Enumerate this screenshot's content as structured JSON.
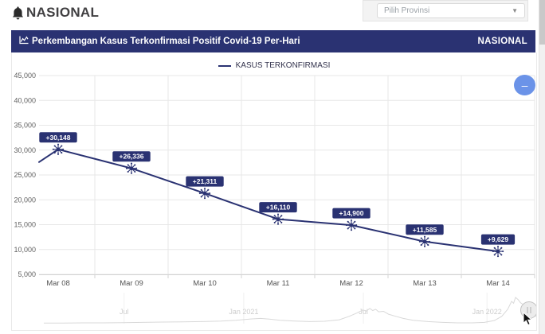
{
  "header": {
    "brand": "NASIONAL",
    "province_select": {
      "placeholder": "Pilih Provinsi"
    }
  },
  "banner": {
    "title": "Perkembangan Kasus Terkonfirmasi Positif Covid-19 Per-Hari",
    "region": "NASIONAL"
  },
  "controls": {
    "zoom_out": "–"
  },
  "chart_data": {
    "type": "line",
    "title": "Perkembangan Kasus Terkonfirmasi Positif Covid-19 Per-Hari",
    "legend": [
      {
        "label": "KASUS TERKONFIRMASI",
        "color": "#2a3272"
      }
    ],
    "legend_position": "top",
    "grid": true,
    "categories": [
      "Mar 08",
      "Mar 09",
      "Mar 10",
      "Mar 11",
      "Mar 12",
      "Mar 13",
      "Mar 14"
    ],
    "series": [
      {
        "name": "KASUS TERKONFIRMASI",
        "values": [
          30148,
          26336,
          21311,
          16110,
          14900,
          11585,
          9629
        ]
      }
    ],
    "data_labels": [
      "+30,148",
      "+26,336",
      "+21,311",
      "+16,110",
      "+14,900",
      "+11,585",
      "+9,629"
    ],
    "y_tick_labels": [
      "45,000",
      "40,000",
      "35,000",
      "30,000",
      "25,000",
      "20,000",
      "15,000",
      "10,000",
      "5,000"
    ],
    "y_ticks": [
      45000,
      40000,
      35000,
      30000,
      25000,
      20000,
      15000,
      10000,
      5000
    ],
    "ylim": [
      5000,
      45000
    ],
    "left_edge_value": 27600,
    "line_color": "#2a3272",
    "marker": "virus-icon",
    "navigator": {
      "labels": [
        {
          "text": "Jul",
          "f": 0.163
        },
        {
          "text": "Jan 2021",
          "f": 0.406
        },
        {
          "text": "Jul",
          "f": 0.649
        },
        {
          "text": "Jan 2022",
          "f": 0.9
        }
      ],
      "profile": [
        [
          0.0,
          0.02
        ],
        [
          0.04,
          0.02
        ],
        [
          0.08,
          0.03
        ],
        [
          0.12,
          0.03
        ],
        [
          0.16,
          0.04
        ],
        [
          0.2,
          0.05
        ],
        [
          0.24,
          0.06
        ],
        [
          0.28,
          0.07
        ],
        [
          0.32,
          0.08
        ],
        [
          0.36,
          0.1
        ],
        [
          0.39,
          0.13
        ],
        [
          0.42,
          0.18
        ],
        [
          0.44,
          0.2
        ],
        [
          0.46,
          0.17
        ],
        [
          0.48,
          0.13
        ],
        [
          0.51,
          0.1
        ],
        [
          0.54,
          0.08
        ],
        [
          0.57,
          0.09
        ],
        [
          0.6,
          0.15
        ],
        [
          0.62,
          0.28
        ],
        [
          0.635,
          0.4
        ],
        [
          0.648,
          0.52
        ],
        [
          0.655,
          0.48
        ],
        [
          0.662,
          0.58
        ],
        [
          0.668,
          0.5
        ],
        [
          0.674,
          0.55
        ],
        [
          0.68,
          0.45
        ],
        [
          0.69,
          0.47
        ],
        [
          0.7,
          0.36
        ],
        [
          0.715,
          0.28
        ],
        [
          0.73,
          0.2
        ],
        [
          0.75,
          0.13
        ],
        [
          0.78,
          0.08
        ],
        [
          0.81,
          0.05
        ],
        [
          0.84,
          0.03
        ],
        [
          0.87,
          0.03
        ],
        [
          0.895,
          0.05
        ],
        [
          0.915,
          0.12
        ],
        [
          0.93,
          0.28
        ],
        [
          0.942,
          0.55
        ],
        [
          0.95,
          0.85
        ],
        [
          0.954,
          0.78
        ],
        [
          0.958,
          1.0
        ],
        [
          0.963,
          0.92
        ],
        [
          0.968,
          0.8
        ],
        [
          0.974,
          0.72
        ],
        [
          0.98,
          0.6
        ],
        [
          0.987,
          0.45
        ],
        [
          0.994,
          0.33
        ],
        [
          1.0,
          0.27
        ]
      ]
    }
  }
}
